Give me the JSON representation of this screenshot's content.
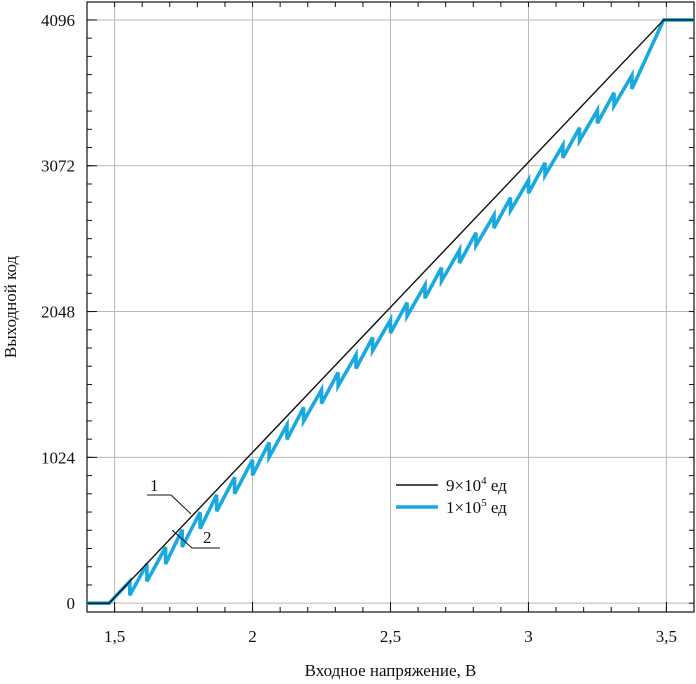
{
  "chart_data": {
    "type": "line",
    "title": "",
    "xlabel": "Входное напряжение, В",
    "ylabel": "Выходной код",
    "xlim": [
      1.4,
      3.6
    ],
    "ylim": [
      -62,
      4222
    ],
    "grid": true,
    "x_ticks": [
      {
        "value": 1.5,
        "label": "1,5"
      },
      {
        "value": 2.0,
        "label": "2"
      },
      {
        "value": 2.5,
        "label": "2,5"
      },
      {
        "value": 3.0,
        "label": "3"
      },
      {
        "value": 3.5,
        "label": "3,5"
      }
    ],
    "y_ticks": [
      {
        "value": 0,
        "label": "0"
      },
      {
        "value": 1024,
        "label": "1024"
      },
      {
        "value": 2048,
        "label": "2048"
      },
      {
        "value": 3072,
        "label": "3072"
      },
      {
        "value": 4096,
        "label": "4096"
      }
    ],
    "legend": {
      "placement": "center-right",
      "entries": [
        {
          "series": 0,
          "base": "9×10",
          "exp": "4",
          "unit": " ед"
        },
        {
          "series": 1,
          "base": "1×10",
          "exp": "5",
          "unit": " ед"
        }
      ]
    },
    "annotations": [
      {
        "label": "1",
        "series": 0
      },
      {
        "label": "2",
        "series": 1
      }
    ],
    "series": [
      {
        "color": "#111111",
        "style": "thin",
        "x": [
          1.4,
          1.48,
          3.49,
          3.6
        ],
        "y": [
          0,
          0,
          4096,
          4096
        ]
      },
      {
        "color": "#1aa9df",
        "style": "thick",
        "x": [
          1.4,
          1.48,
          1.555,
          1.555,
          1.617,
          1.617,
          1.685,
          1.685,
          1.745,
          1.745,
          1.81,
          1.81,
          1.87,
          1.87,
          1.935,
          1.935,
          2.0,
          2.0,
          2.06,
          2.06,
          2.125,
          2.125,
          2.185,
          2.185,
          2.25,
          2.25,
          2.31,
          2.31,
          2.375,
          2.375,
          2.435,
          2.435,
          2.5,
          2.5,
          2.56,
          2.56,
          2.625,
          2.625,
          2.685,
          2.685,
          2.75,
          2.75,
          2.81,
          2.81,
          2.875,
          2.875,
          2.935,
          2.935,
          3.0,
          3.0,
          3.06,
          3.06,
          3.125,
          3.125,
          3.185,
          3.185,
          3.25,
          3.25,
          3.31,
          3.31,
          3.375,
          3.375,
          3.49,
          3.6
        ],
        "y": [
          0,
          0,
          153,
          55,
          275,
          153,
          393,
          275,
          516,
          395,
          639,
          522,
          761,
          645,
          884,
          768,
          1007,
          898,
          1129,
          1026,
          1252,
          1150,
          1375,
          1279,
          1498,
          1402,
          1620,
          1525,
          1743,
          1648,
          1866,
          1774,
          1989,
          1897,
          2111,
          2017,
          2234,
          2142,
          2357,
          2262,
          2480,
          2389,
          2602,
          2512,
          2725,
          2635,
          2848,
          2758,
          2971,
          2879,
          3093,
          3005,
          3216,
          3128,
          3339,
          3248,
          3462,
          3371,
          3584,
          3494,
          3707,
          3612,
          4096,
          4096
        ]
      }
    ]
  }
}
